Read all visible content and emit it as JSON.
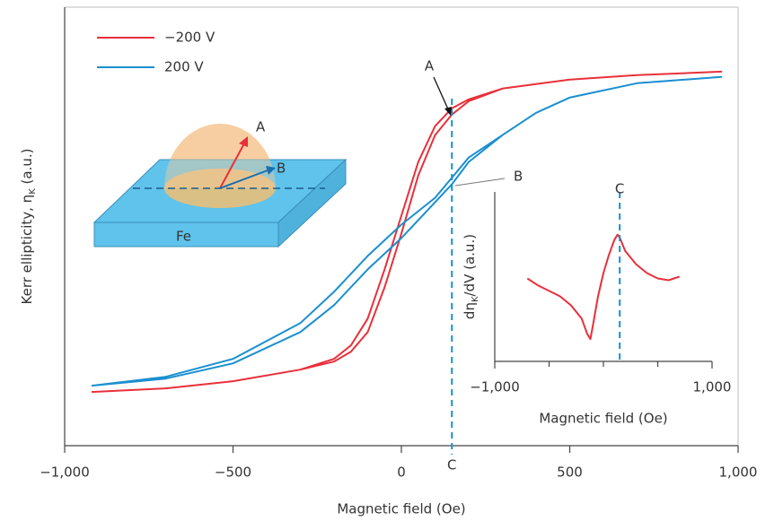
{
  "chart_data": [
    {
      "type": "line",
      "legend": "upper left",
      "x_label": "Magnetic field (Oe)",
      "y_label_parts": [
        "Kerr ellipticity, η",
        "K",
        " (a.u.)"
      ],
      "xlim": [
        -1000,
        1000
      ],
      "ylim": [
        -245,
        245
      ],
      "xticks": [
        {
          "value": -1000,
          "label": "−1,000"
        },
        {
          "value": -500,
          "label": "−500"
        },
        0,
        500,
        {
          "value": 1000,
          "label": "1,000"
        }
      ],
      "series": [
        {
          "name": "−200 V",
          "color": "#e8303a",
          "x": [
            -920,
            -700,
            -500,
            -300,
            -200,
            -150,
            -100,
            -50,
            0,
            50,
            100,
            150,
            200,
            300,
            500,
            700,
            950,
            950,
            700,
            500,
            300,
            200,
            150,
            100,
            50,
            0,
            -50,
            -100,
            -150,
            -200,
            -300,
            -500,
            -700,
            -920
          ],
          "values": [
            -185,
            -181,
            -173,
            -160,
            -151,
            -140,
            -118,
            -68,
            -8,
            57,
            102,
            125,
            140,
            154,
            164,
            169,
            173,
            173,
            169,
            164,
            154,
            142,
            132,
            112,
            72,
            12,
            -48,
            -103,
            -133,
            -148,
            -160,
            -173,
            -181,
            -185
          ]
        },
        {
          "name": "200 V",
          "color": "#1a8fd0",
          "x": [
            -920,
            -700,
            -500,
            -300,
            -200,
            -100,
            0,
            100,
            150,
            200,
            300,
            400,
            500,
            700,
            950,
            950,
            700,
            500,
            400,
            300,
            200,
            100,
            0,
            -100,
            -200,
            -300,
            -500,
            -700,
            -920
          ],
          "values": [
            -178,
            -170,
            -153,
            -118,
            -88,
            -48,
            -13,
            27,
            47,
            72,
            102,
            127,
            144,
            160,
            167,
            167,
            160,
            144,
            127,
            102,
            77,
            32,
            2,
            -33,
            -73,
            -108,
            -148,
            -168,
            -178
          ]
        }
      ],
      "vline": {
        "x": 150,
        "label": "C"
      },
      "annotations": [
        "A",
        "B"
      ]
    },
    {
      "type": "line",
      "x_label": "Magnetic field (Oe)",
      "y_label_parts": [
        "dη",
        "K",
        "/dV (a.u.)"
      ],
      "xlim": [
        -1000,
        1000
      ],
      "ylim": [
        -95,
        95
      ],
      "xticks": [
        {
          "value": -1000,
          "label": "−1,000"
        },
        {
          "value": 1000,
          "label": "1,000"
        }
      ],
      "xminor_ticks": [
        -500,
        0,
        500
      ],
      "series": [
        {
          "color": "#e8303a",
          "x": [
            -700,
            -600,
            -400,
            -300,
            -200,
            -150,
            -120,
            -100,
            -50,
            0,
            50,
            100,
            130,
            150,
            200,
            300,
            400,
            500,
            600,
            700
          ],
          "values": [
            -2,
            -10,
            -22,
            -32,
            -47,
            -64,
            -70,
            -57,
            -22,
            4,
            24,
            41,
            47,
            44,
            29,
            14,
            4,
            -2,
            -4,
            0
          ]
        }
      ],
      "vline": {
        "x": 150,
        "label": "C"
      }
    }
  ],
  "diagram": {
    "labels": [
      "A",
      "B",
      "Fe"
    ]
  }
}
